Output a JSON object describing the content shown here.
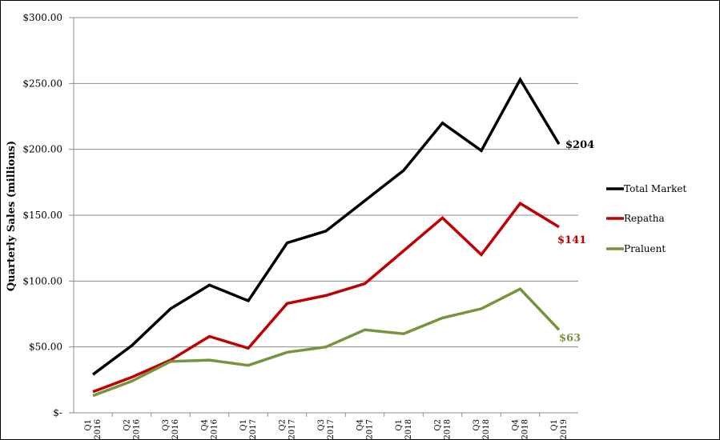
{
  "chart_data": {
    "type": "line",
    "title": "",
    "xlabel": "",
    "ylabel": "Quarterly Sales (millions)",
    "ylim": [
      0,
      300
    ],
    "y_ticks": [
      {
        "value": 0,
        "label": "$-"
      },
      {
        "value": 50,
        "label": "$50.00"
      },
      {
        "value": 100,
        "label": "$100.00"
      },
      {
        "value": 150,
        "label": "$150.00"
      },
      {
        "value": 200,
        "label": "$200.00"
      },
      {
        "value": 250,
        "label": "$250.00"
      },
      {
        "value": 300,
        "label": "$300.00"
      }
    ],
    "categories": [
      {
        "q": "Q1",
        "y": "2016"
      },
      {
        "q": "Q2",
        "y": "2016"
      },
      {
        "q": "Q3",
        "y": "2016"
      },
      {
        "q": "Q4",
        "y": "2016"
      },
      {
        "q": "Q1",
        "y": "2017"
      },
      {
        "q": "Q2",
        "y": "2017"
      },
      {
        "q": "Q3",
        "y": "2017"
      },
      {
        "q": "Q4",
        "y": "2017"
      },
      {
        "q": "Q1",
        "y": "2018"
      },
      {
        "q": "Q2",
        "y": "2018"
      },
      {
        "q": "Q3",
        "y": "2018"
      },
      {
        "q": "Q4",
        "y": "2018"
      },
      {
        "q": "Q1",
        "y": "2019"
      }
    ],
    "grid": true,
    "legend_position": "right",
    "series": [
      {
        "name": "Total Market",
        "color": "#000000",
        "end_label": "$204",
        "values": [
          29,
          51,
          79,
          97,
          85,
          129,
          138,
          161,
          184,
          220,
          199,
          253,
          204
        ]
      },
      {
        "name": "Repatha",
        "color": "#c00000",
        "end_label": "$141",
        "values": [
          16,
          27,
          40,
          58,
          49,
          83,
          89,
          98,
          123,
          148,
          120,
          159,
          141
        ]
      },
      {
        "name": "Praluent",
        "color": "#77933c",
        "end_label": "$63",
        "values": [
          13,
          24,
          39,
          40,
          36,
          46,
          50,
          63,
          60,
          72,
          79,
          94,
          63
        ]
      }
    ]
  }
}
